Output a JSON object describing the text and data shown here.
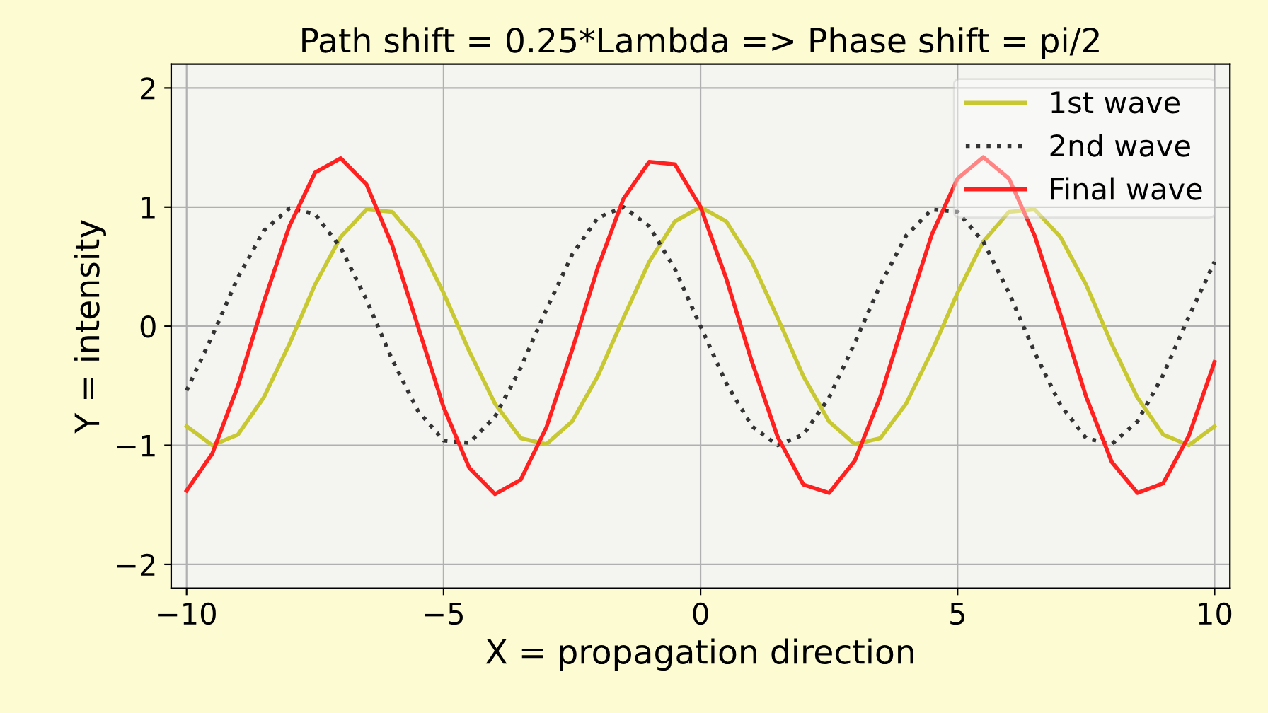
{
  "chart_data": {
    "type": "line",
    "title": "Path shift = 0.25*Lambda => Phase shift = pi/2",
    "xlabel": "X = propagation direction",
    "ylabel": "Y = intensity",
    "x": [
      -10,
      -9.5,
      -9,
      -8.5,
      -8,
      -7.5,
      -7,
      -6.5,
      -6,
      -5.5,
      -5,
      -4.5,
      -4,
      -3.5,
      -3,
      -2.5,
      -2,
      -1.5,
      -1,
      -0.5,
      0,
      0.5,
      1,
      1.5,
      2,
      2.5,
      3,
      3.5,
      4,
      4.5,
      5,
      5.5,
      6,
      6.5,
      7,
      7.5,
      8,
      8.5,
      9,
      9.5,
      10
    ],
    "series": [
      {
        "name": "1st wave",
        "color": "#c8c832",
        "line_style": "solid",
        "values": [
          -0.84,
          -1.0,
          -0.91,
          -0.6,
          -0.15,
          0.35,
          0.75,
          0.98,
          0.96,
          0.71,
          0.28,
          -0.21,
          -0.65,
          -0.94,
          -0.99,
          -0.8,
          -0.42,
          0.07,
          0.54,
          0.88,
          1.0,
          0.88,
          0.54,
          0.07,
          -0.42,
          -0.8,
          -0.99,
          -0.94,
          -0.65,
          -0.21,
          0.28,
          0.71,
          0.96,
          0.98,
          0.75,
          0.35,
          -0.15,
          -0.6,
          -0.91,
          -1.0,
          -0.84
        ]
      },
      {
        "name": "2nd wave",
        "color": "#333333",
        "line_style": "dotted",
        "values": [
          -0.54,
          -0.08,
          0.41,
          0.8,
          0.99,
          0.94,
          0.66,
          0.22,
          -0.28,
          -0.71,
          -0.96,
          -0.98,
          -0.76,
          -0.35,
          0.14,
          0.6,
          0.91,
          1.0,
          0.84,
          0.48,
          0.0,
          -0.48,
          -0.84,
          -1.0,
          -0.91,
          -0.6,
          -0.14,
          0.35,
          0.76,
          0.98,
          0.96,
          0.71,
          0.28,
          -0.22,
          -0.66,
          -0.94,
          -0.99,
          -0.8,
          -0.41,
          0.08,
          0.54
        ]
      },
      {
        "name": "Final wave",
        "color": "#ff2020",
        "line_style": "solid",
        "values": [
          -1.38,
          -1.07,
          -0.5,
          0.2,
          0.84,
          1.29,
          1.41,
          1.19,
          0.68,
          0.0,
          -0.68,
          -1.19,
          -1.41,
          -1.29,
          -0.85,
          -0.2,
          0.49,
          1.07,
          1.38,
          1.36,
          1.0,
          0.4,
          -0.3,
          -0.93,
          -1.33,
          -1.4,
          -1.13,
          -0.59,
          0.1,
          0.77,
          1.24,
          1.42,
          1.24,
          0.76,
          0.1,
          -0.59,
          -1.14,
          -1.4,
          -1.32,
          -0.92,
          -0.3
        ]
      }
    ],
    "xlim": [
      -10.3,
      10.3
    ],
    "ylim": [
      -2.2,
      2.2
    ],
    "xticks": [
      {
        "value": -10,
        "label": "−10"
      },
      {
        "value": -5,
        "label": "−5"
      },
      0,
      5,
      10
    ],
    "yticks": [
      {
        "value": -2,
        "label": "−2"
      },
      {
        "value": -1,
        "label": "−1"
      },
      0,
      1,
      2
    ],
    "grid": true,
    "legend": "top right"
  }
}
